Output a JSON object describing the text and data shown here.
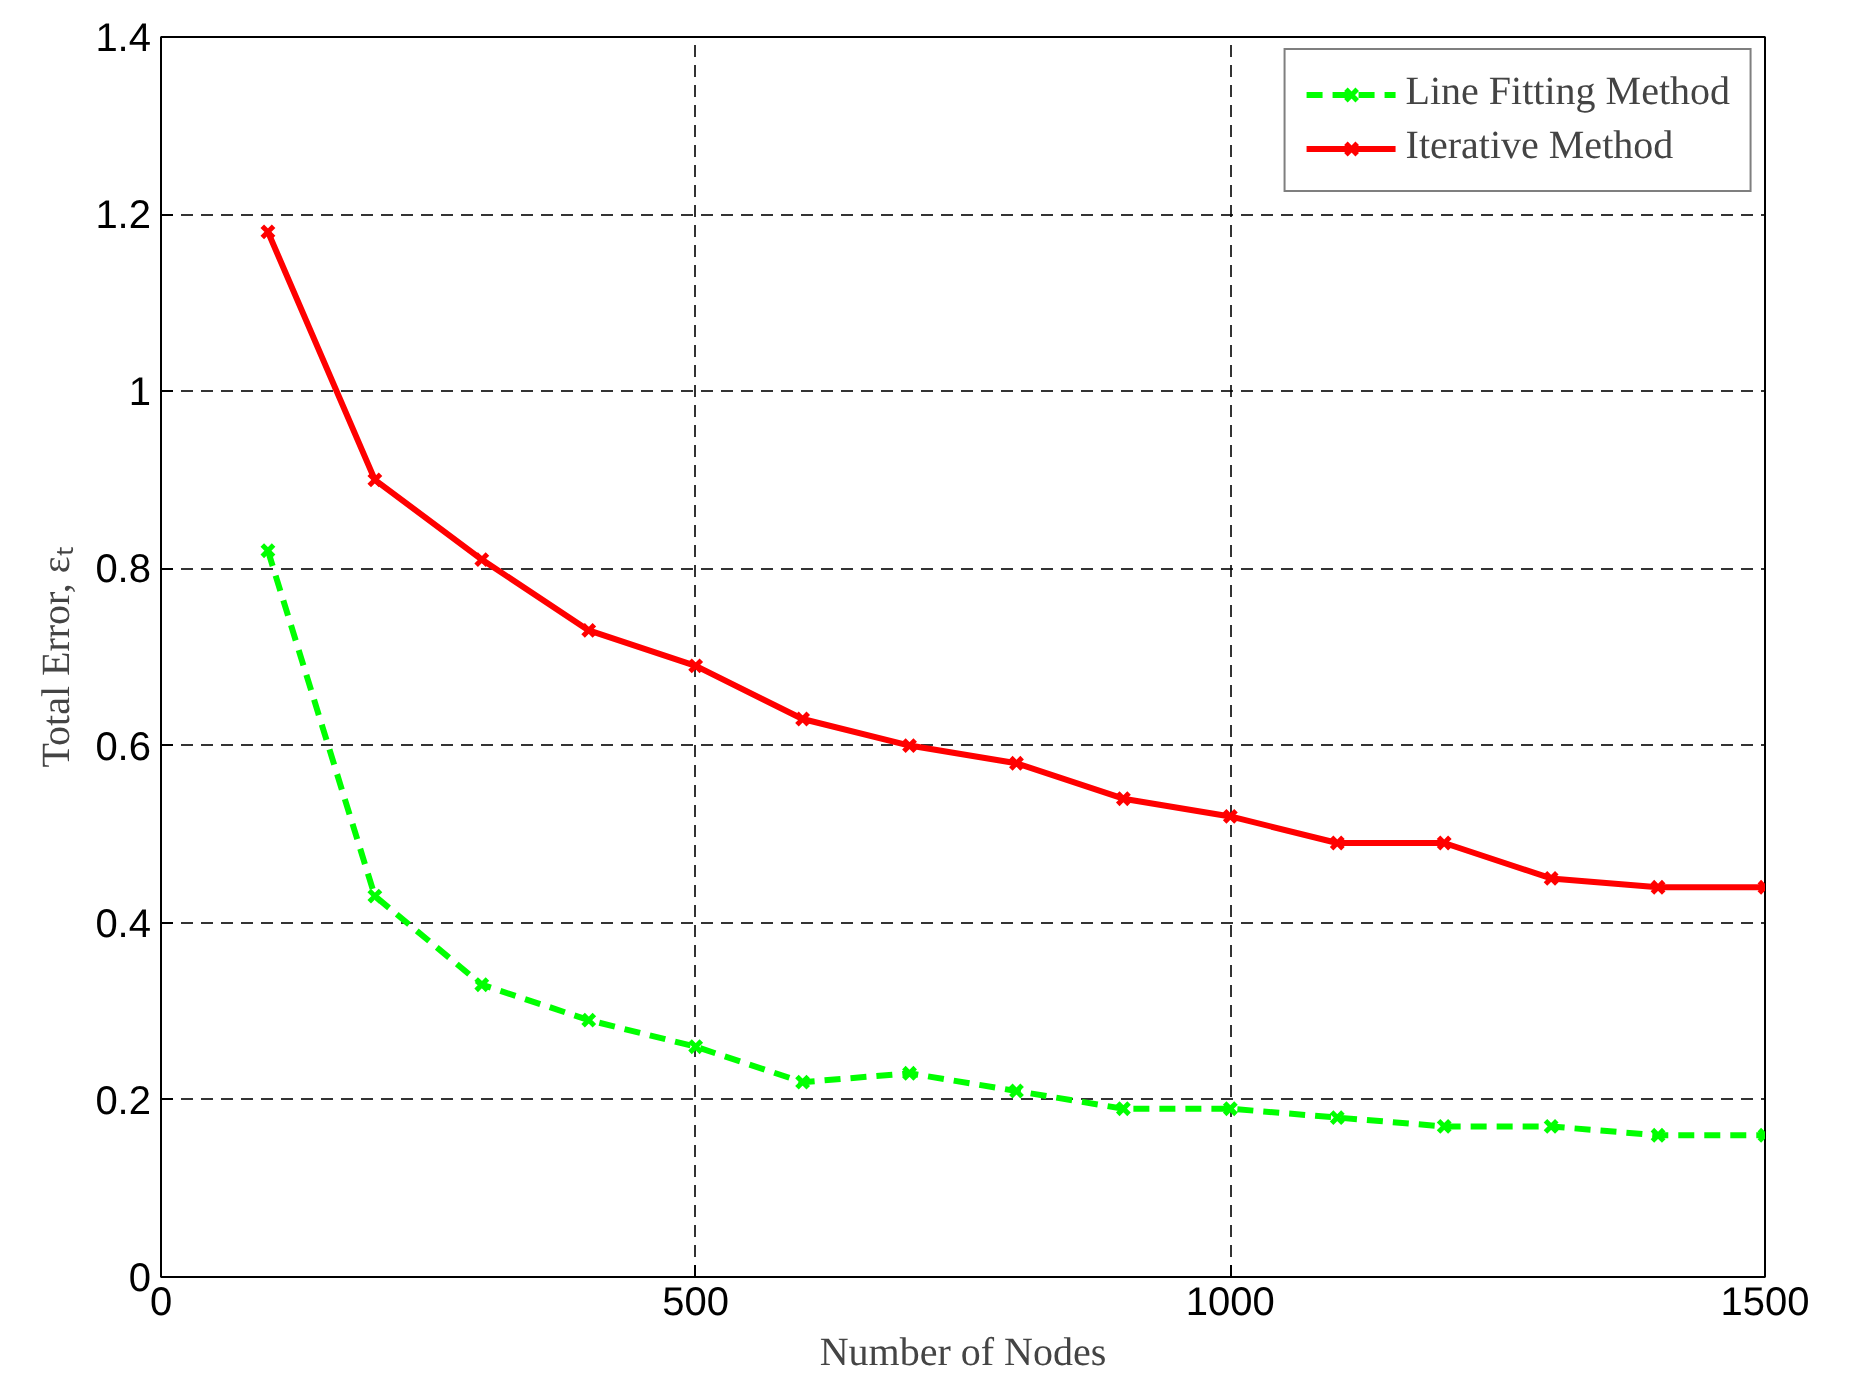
{
  "chart_data": {
    "type": "line",
    "xlabel": "Number of Nodes",
    "ylabel": "Total Error, εₜ",
    "x": [
      100,
      200,
      300,
      400,
      500,
      600,
      700,
      800,
      900,
      1000,
      1100,
      1200,
      1300,
      1400,
      1500
    ],
    "series": [
      {
        "name": "Line Fitting Method",
        "color": "#00ff00",
        "line_style": "dashed",
        "values": [
          0.82,
          0.43,
          0.33,
          0.29,
          0.26,
          0.22,
          0.23,
          0.21,
          0.19,
          0.19,
          0.18,
          0.17,
          0.17,
          0.16,
          0.16
        ]
      },
      {
        "name": "Iterative Method",
        "color": "#ff0000",
        "line_style": "solid",
        "values": [
          1.18,
          0.9,
          0.81,
          0.73,
          0.69,
          0.63,
          0.6,
          0.58,
          0.54,
          0.52,
          0.49,
          0.49,
          0.45,
          0.44,
          0.44
        ]
      }
    ],
    "xlim": [
      0,
      1500
    ],
    "ylim": [
      0,
      1.4
    ],
    "xticks": [
      0,
      500,
      1000,
      1500
    ],
    "yticks": [
      0,
      0.2,
      0.4,
      0.6,
      0.8,
      1,
      1.2,
      1.4
    ],
    "grid": true,
    "legend": "top right",
    "marker": "cross"
  }
}
